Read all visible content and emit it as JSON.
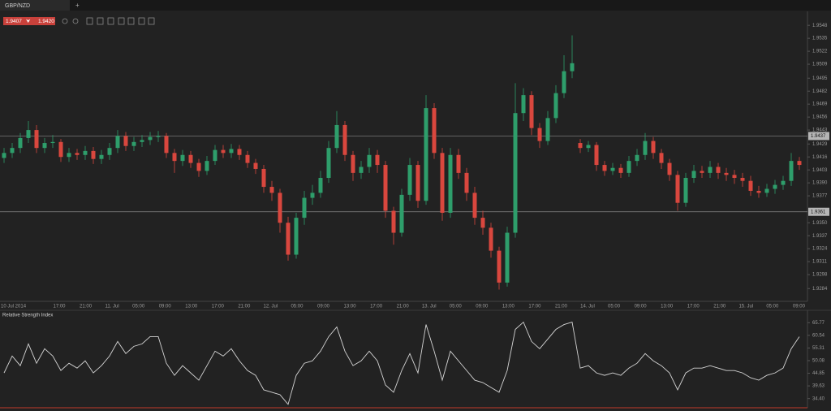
{
  "ui": {
    "tab": "GBP/NZD",
    "add_tab": "+",
    "bid": "1.9407",
    "ask": "1.9420"
  },
  "chart_data": [
    {
      "type": "candlestick",
      "up_color": "#2e9e6b",
      "down_color": "#d9473e",
      "x_labels": [
        "10 Jul 2014",
        "17:00",
        "21:00",
        "11. Jul",
        "05:00",
        "09:00",
        "13:00",
        "17:00",
        "21:00",
        "12. Jul",
        "05:00",
        "09:00",
        "13:00",
        "17:00",
        "21:00",
        "13. Jul",
        "05:00",
        "09:00",
        "13:00",
        "17:00",
        "21:00",
        "14. Jul",
        "05:00",
        "09:00",
        "13:00",
        "17:00",
        "21:00",
        "15. Jul",
        "05:00",
        "09:00"
      ],
      "ylim": [
        1.9272,
        1.9562
      ],
      "yticks": [
        1.9548,
        1.9535,
        1.9522,
        1.9509,
        1.9495,
        1.9482,
        1.9469,
        1.9456,
        1.9443,
        1.9429,
        1.9416,
        1.9403,
        {
          "value": 1.939,
          "label": "1.9390"
        },
        1.9377,
        {
          "value": 1.935,
          "label": "1.9350"
        },
        1.9337,
        1.9324,
        1.9311,
        1.9298,
        1.9284
      ],
      "levels": [
        1.9437,
        1.9361
      ],
      "open": [
        1.9415,
        1.942,
        1.9425,
        1.9435,
        1.9443,
        1.9425,
        1.943,
        1.9431,
        1.9416,
        1.942,
        1.9418,
        1.9422,
        1.9414,
        1.9418,
        1.9425,
        1.9437,
        1.9427,
        1.9431,
        1.9433,
        1.9436,
        1.9437,
        1.942,
        1.9412,
        1.9418,
        1.941,
        1.9402,
        1.9412,
        1.9423,
        1.942,
        1.9424,
        1.9418,
        1.941,
        1.9404,
        1.9386,
        1.938,
        1.935,
        1.9318,
        1.9355,
        1.9375,
        1.938,
        1.9395,
        1.9425,
        1.9448,
        1.9418,
        1.94,
        1.9406,
        1.9418,
        1.9408,
        1.9362,
        1.934,
        1.9378,
        1.9408,
        1.9372,
        1.9465,
        1.942,
        1.936,
        1.9418,
        1.94,
        1.938,
        1.9355,
        1.9345,
        1.9322,
        1.929,
        1.934,
        1.946,
        1.9478,
        1.9445,
        1.9432,
        1.9455,
        1.948,
        1.9502,
        1.943,
        1.9425,
        1.9428,
        1.9408,
        1.9402,
        1.9405,
        1.94,
        1.9412,
        1.9418,
        1.9432,
        1.942,
        1.941,
        1.9398,
        1.937,
        1.9395,
        1.9402,
        1.94,
        1.9406,
        1.94,
        1.9398,
        1.9395,
        1.9392,
        1.9382,
        1.938,
        1.9384,
        1.9388,
        1.9392,
        1.9412
      ],
      "high": [
        1.9425,
        1.943,
        1.944,
        1.9452,
        1.9448,
        1.9435,
        1.9438,
        1.9434,
        1.9425,
        1.9424,
        1.9427,
        1.9426,
        1.9423,
        1.943,
        1.9443,
        1.9441,
        1.9436,
        1.9438,
        1.9441,
        1.9442,
        1.944,
        1.9424,
        1.9423,
        1.9422,
        1.9414,
        1.9417,
        1.9428,
        1.9428,
        1.9429,
        1.9428,
        1.9422,
        1.9414,
        1.9408,
        1.9392,
        1.9384,
        1.9356,
        1.936,
        1.9382,
        1.9388,
        1.9402,
        1.9432,
        1.9462,
        1.9452,
        1.9422,
        1.9412,
        1.9425,
        1.9423,
        1.9412,
        1.9366,
        1.9384,
        1.9415,
        1.9412,
        1.9478,
        1.947,
        1.9425,
        1.9425,
        1.9424,
        1.9405,
        1.9386,
        1.9362,
        1.935,
        1.9326,
        1.9346,
        1.949,
        1.9485,
        1.9482,
        1.945,
        1.9462,
        1.9488,
        1.9518,
        1.9538,
        1.9434,
        1.9432,
        1.9431,
        1.9412,
        1.941,
        1.9409,
        1.9417,
        1.9424,
        1.944,
        1.9436,
        1.9424,
        1.9414,
        1.9402,
        1.94,
        1.9408,
        1.9407,
        1.9412,
        1.941,
        1.9405,
        1.9403,
        1.94,
        1.9397,
        1.9387,
        1.9389,
        1.9393,
        1.9397,
        1.942,
        1.9416
      ],
      "low": [
        1.941,
        1.9415,
        1.942,
        1.943,
        1.942,
        1.942,
        1.9425,
        1.9411,
        1.9411,
        1.9413,
        1.9413,
        1.9409,
        1.9409,
        1.9413,
        1.942,
        1.9422,
        1.9422,
        1.9426,
        1.9428,
        1.9431,
        1.9415,
        1.94,
        1.9407,
        1.9405,
        1.9396,
        1.9398,
        1.9408,
        1.9415,
        1.9415,
        1.9413,
        1.9405,
        1.9399,
        1.938,
        1.9372,
        1.934,
        1.9312,
        1.9314,
        1.9348,
        1.9368,
        1.9375,
        1.939,
        1.942,
        1.9412,
        1.9392,
        1.9394,
        1.94,
        1.94,
        1.9355,
        1.9328,
        1.9336,
        1.9372,
        1.9365,
        1.9368,
        1.9414,
        1.9352,
        1.9355,
        1.9394,
        1.9372,
        1.9348,
        1.9338,
        1.9315,
        1.9283,
        1.9286,
        1.9335,
        1.9452,
        1.9438,
        1.9425,
        1.9428,
        1.945,
        1.9475,
        1.9495,
        1.942,
        1.9421,
        1.9402,
        1.9397,
        1.9398,
        1.9395,
        1.9396,
        1.9407,
        1.9413,
        1.9414,
        1.9404,
        1.9392,
        1.9362,
        1.9366,
        1.939,
        1.9395,
        1.9395,
        1.9394,
        1.9392,
        1.9389,
        1.9386,
        1.9377,
        1.9375,
        1.9376,
        1.9379,
        1.9383,
        1.9387,
        1.9403
      ],
      "close": [
        1.942,
        1.9425,
        1.9435,
        1.9443,
        1.9425,
        1.943,
        1.9431,
        1.9416,
        1.942,
        1.9418,
        1.9422,
        1.9414,
        1.9418,
        1.9425,
        1.9437,
        1.9427,
        1.9431,
        1.9433,
        1.9436,
        1.9437,
        1.942,
        1.9412,
        1.9418,
        1.941,
        1.9402,
        1.9412,
        1.9423,
        1.942,
        1.9424,
        1.9418,
        1.941,
        1.9404,
        1.9386,
        1.938,
        1.935,
        1.9318,
        1.9355,
        1.9375,
        1.938,
        1.9395,
        1.9425,
        1.9448,
        1.9418,
        1.94,
        1.9406,
        1.9418,
        1.9408,
        1.9362,
        1.934,
        1.9378,
        1.9408,
        1.9372,
        1.9465,
        1.942,
        1.936,
        1.9418,
        1.94,
        1.938,
        1.9355,
        1.9345,
        1.9322,
        1.929,
        1.934,
        1.946,
        1.9478,
        1.9445,
        1.9432,
        1.9455,
        1.948,
        1.9502,
        1.951,
        1.9425,
        1.9428,
        1.9408,
        1.9402,
        1.9405,
        1.94,
        1.9412,
        1.9418,
        1.9432,
        1.942,
        1.941,
        1.9398,
        1.937,
        1.9395,
        1.9402,
        1.94,
        1.9406,
        1.94,
        1.9398,
        1.9395,
        1.9392,
        1.9382,
        1.938,
        1.9384,
        1.9388,
        1.9392,
        1.9412,
        1.9408
      ]
    },
    {
      "type": "line",
      "title": "Relative Strength Index",
      "color": "#d4d4d4",
      "ylim": [
        30.6,
        70.9
      ],
      "yticks": [
        65.77,
        60.54,
        55.31,
        50.08,
        44.85,
        39.63,
        {
          "value": 34.4,
          "label": "34.40"
        }
      ],
      "values": [
        45,
        52,
        48,
        57,
        49,
        55,
        52,
        46,
        49,
        47,
        50,
        45,
        48,
        52,
        58,
        53,
        56,
        57,
        60,
        60,
        49,
        44,
        48,
        45,
        42,
        48,
        54,
        52,
        55,
        50,
        46,
        44,
        38,
        37,
        36,
        32,
        44,
        49,
        50,
        54,
        60,
        64,
        54,
        48,
        50,
        54,
        50,
        40,
        37,
        46,
        53,
        45,
        65,
        54,
        42,
        54,
        50,
        46,
        42,
        41,
        39,
        37,
        46,
        63,
        66,
        58,
        55,
        59,
        63,
        65,
        66,
        47,
        48,
        45,
        44,
        45,
        44,
        47,
        49,
        53,
        50,
        48,
        45,
        38,
        45,
        47,
        47,
        48,
        47,
        46,
        46,
        45,
        43,
        42,
        44,
        45,
        47,
        55,
        60
      ]
    }
  ]
}
